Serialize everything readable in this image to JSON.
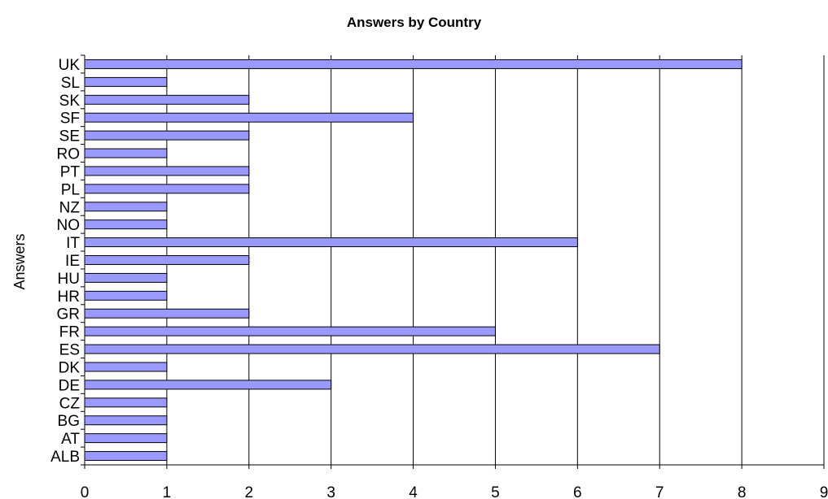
{
  "chart_data": {
    "type": "bar",
    "orientation": "horizontal",
    "title": "Answers by Country",
    "ylabel": "Answers",
    "xlabel": "",
    "categories": [
      "UK",
      "SL",
      "SK",
      "SF",
      "SE",
      "RO",
      "PT",
      "PL",
      "NZ",
      "NO",
      "IT",
      "IE",
      "HU",
      "HR",
      "GR",
      "FR",
      "ES",
      "DK",
      "DE",
      "CZ",
      "BG",
      "AT",
      "ALB"
    ],
    "values": [
      8,
      1,
      2,
      4,
      2,
      1,
      2,
      2,
      1,
      1,
      6,
      2,
      1,
      1,
      2,
      5,
      7,
      1,
      3,
      1,
      1,
      1,
      1
    ],
    "xlim": [
      0,
      9
    ],
    "xticks": [
      "0",
      "1",
      "2",
      "3",
      "4",
      "5",
      "6",
      "7",
      "8",
      "9"
    ],
    "grid": "vertical",
    "bar_color": "#9999ff",
    "bar_edge_color": "#000000",
    "legend": "none"
  }
}
